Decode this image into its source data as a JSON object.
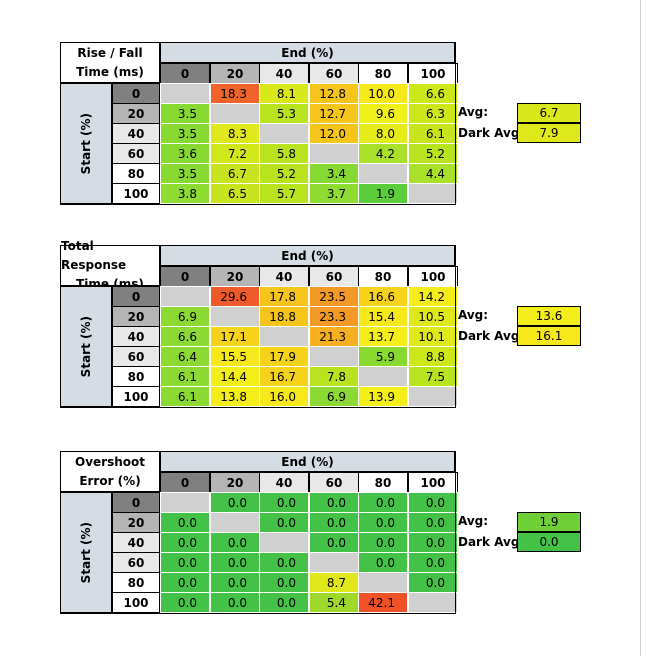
{
  "headers": [
    "0",
    "20",
    "40",
    "60",
    "80",
    "100"
  ],
  "start_label": "Start (%)",
  "end_label": "End (%)",
  "avg_label": "Avg:",
  "dark_avg_label": "Dark Avg:",
  "colors": {
    "diag": "#d0d0d0",
    "header_dark": "#808080",
    "header_mid": "#b5b5b5",
    "header_light": "#e8e8e8",
    "header_white": "#ffffff",
    "corner_bg": "#ffffff",
    "label_bg": "#d6dce4"
  },
  "tables": [
    {
      "title_line1": "Rise / Fall",
      "title_line2": "Time (ms)",
      "rows": [
        [
          "",
          "18.3",
          "8.1",
          "12.8",
          "10.0",
          "6.6"
        ],
        [
          "3.5",
          "",
          "5.3",
          "12.7",
          "9.6",
          "6.3"
        ],
        [
          "3.5",
          "8.3",
          "",
          "12.0",
          "8.0",
          "6.1"
        ],
        [
          "3.6",
          "7.2",
          "5.8",
          "",
          "4.2",
          "5.2"
        ],
        [
          "3.5",
          "6.7",
          "5.2",
          "3.4",
          "",
          "4.4"
        ],
        [
          "3.8",
          "6.5",
          "5.7",
          "3.7",
          "1.9",
          ""
        ]
      ],
      "colors": [
        [
          "",
          "#f0642c",
          "#d9e81a",
          "#f6c51b",
          "#f6e81a",
          "#cde81a"
        ],
        [
          "#88d832",
          "",
          "#b9e31e",
          "#f6c51b",
          "#f0f01a",
          "#cde81a"
        ],
        [
          "#88d832",
          "#dfe81a",
          "",
          "#f6c51b",
          "#e6ec1a",
          "#c8e41e"
        ],
        [
          "#88d832",
          "#d0e81a",
          "#b9e31e",
          "",
          "#a8e02a",
          "#b9e31e"
        ],
        [
          "#88d832",
          "#c8e41e",
          "#b9e31e",
          "#86d832",
          "",
          "#a8e02a"
        ],
        [
          "#8edb32",
          "#c8e41e",
          "#b9e31e",
          "#8edb32",
          "#5ccd3a",
          ""
        ]
      ],
      "avg": "6.7",
      "dark_avg": "7.9",
      "avg_color": "#d9e81a",
      "dark_avg_color": "#dfe81a"
    },
    {
      "title_line1": "Total Response",
      "title_line2": "Time (ms)",
      "rows": [
        [
          "",
          "29.6",
          "17.8",
          "23.5",
          "16.6",
          "14.2"
        ],
        [
          "6.9",
          "",
          "18.8",
          "23.3",
          "15.4",
          "10.5"
        ],
        [
          "6.6",
          "17.1",
          "",
          "21.3",
          "13.7",
          "10.1"
        ],
        [
          "6.4",
          "15.5",
          "17.9",
          "",
          "5.9",
          "8.8"
        ],
        [
          "6.1",
          "14.4",
          "16.7",
          "7.8",
          "",
          "7.5"
        ],
        [
          "6.1",
          "13.8",
          "16.0",
          "6.9",
          "13.9",
          ""
        ]
      ],
      "colors": [
        [
          "",
          "#ef5a2a",
          "#f6c51b",
          "#f39a26",
          "#f6d21b",
          "#f3ee1a"
        ],
        [
          "#8bd932",
          "",
          "#f6c51b",
          "#f39a26",
          "#f6e81a",
          "#dfe81a"
        ],
        [
          "#8bd932",
          "#f6d21b",
          "",
          "#f6b01f",
          "#f3ee1a",
          "#dfe81a"
        ],
        [
          "#8bd932",
          "#f6e81a",
          "#f6d21b",
          "",
          "#88d832",
          "#cde81a"
        ],
        [
          "#8bd932",
          "#f3ee1a",
          "#f6d21b",
          "#b9e31e",
          "",
          "#b9e31e"
        ],
        [
          "#8bd932",
          "#f3ee1a",
          "#f6e81a",
          "#8bd932",
          "#f3ee1a",
          ""
        ]
      ],
      "avg": "13.6",
      "dark_avg": "16.1",
      "avg_color": "#f3ee1a",
      "dark_avg_color": "#f6e81a"
    },
    {
      "title_line1": "Overshoot",
      "title_line2": "Error (%)",
      "rows": [
        [
          "",
          "0.0",
          "0.0",
          "0.0",
          "0.0",
          "0.0"
        ],
        [
          "0.0",
          "",
          "0.0",
          "0.0",
          "0.0",
          "0.0"
        ],
        [
          "0.0",
          "0.0",
          "",
          "0.0",
          "0.0",
          "0.0"
        ],
        [
          "0.0",
          "0.0",
          "0.0",
          "",
          "0.0",
          "0.0"
        ],
        [
          "0.0",
          "0.0",
          "0.0",
          "8.7",
          "",
          "0.0"
        ],
        [
          "0.0",
          "0.0",
          "0.0",
          "5.4",
          "42.1",
          ""
        ]
      ],
      "colors": [
        [
          "",
          "#44c248",
          "#44c248",
          "#44c248",
          "#44c248",
          "#44c248"
        ],
        [
          "#44c248",
          "",
          "#44c248",
          "#44c248",
          "#44c248",
          "#44c248"
        ],
        [
          "#44c248",
          "#44c248",
          "",
          "#44c248",
          "#44c248",
          "#44c248"
        ],
        [
          "#44c248",
          "#44c248",
          "#44c248",
          "",
          "#44c248",
          "#44c248"
        ],
        [
          "#44c248",
          "#44c248",
          "#44c248",
          "#e0e81a",
          "",
          "#44c248"
        ],
        [
          "#44c248",
          "#44c248",
          "#44c248",
          "#9ed82a",
          "#ef5226",
          ""
        ]
      ],
      "avg": "1.9",
      "dark_avg": "0.0",
      "avg_color": "#6ed036",
      "dark_avg_color": "#44c248"
    }
  ]
}
